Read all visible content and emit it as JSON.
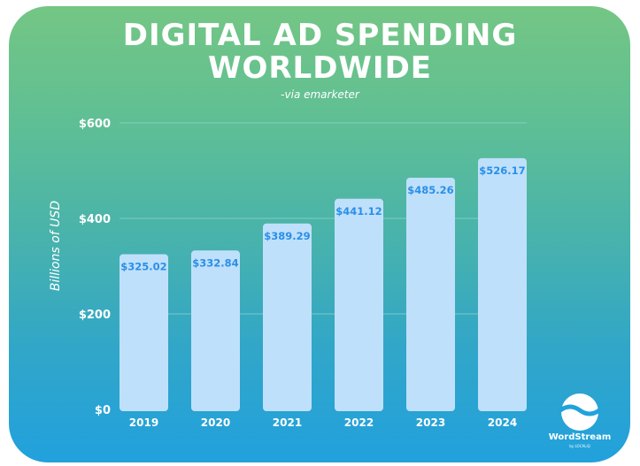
{
  "chart_data": {
    "type": "bar",
    "title": "DIGITAL AD SPENDING WORLDWIDE",
    "title_lines": [
      "DIGITAL AD SPENDING",
      "WORLDWIDE"
    ],
    "subtitle": "-via emarketer",
    "xlabel": "",
    "ylabel": "Billions of USD",
    "categories": [
      "2019",
      "2020",
      "2021",
      "2022",
      "2023",
      "2024"
    ],
    "values": [
      325.02,
      332.84,
      389.29,
      441.12,
      485.26,
      526.17
    ],
    "data_labels": [
      "$325.02",
      "$332.84",
      "$389.29",
      "$441.12",
      "$485.26",
      "$526.17"
    ],
    "ylim": [
      0,
      600
    ],
    "yticks": [
      0,
      200,
      400,
      600
    ],
    "ytick_labels": [
      "$0",
      "$200",
      "$400",
      "$600"
    ],
    "grid": true,
    "legend": "none",
    "colors": {
      "bar_fill": "#bfe0fb",
      "data_label": "#2a8fe8",
      "gridline": "#8ad4c8",
      "text": "#ffffff",
      "gradient_top": "#74c684",
      "gradient_bottom": "#21a1dd"
    }
  },
  "branding": {
    "logo_icon": "wordstream-wave-icon",
    "name": "WordStream",
    "byline": "by LOCALiQ"
  }
}
